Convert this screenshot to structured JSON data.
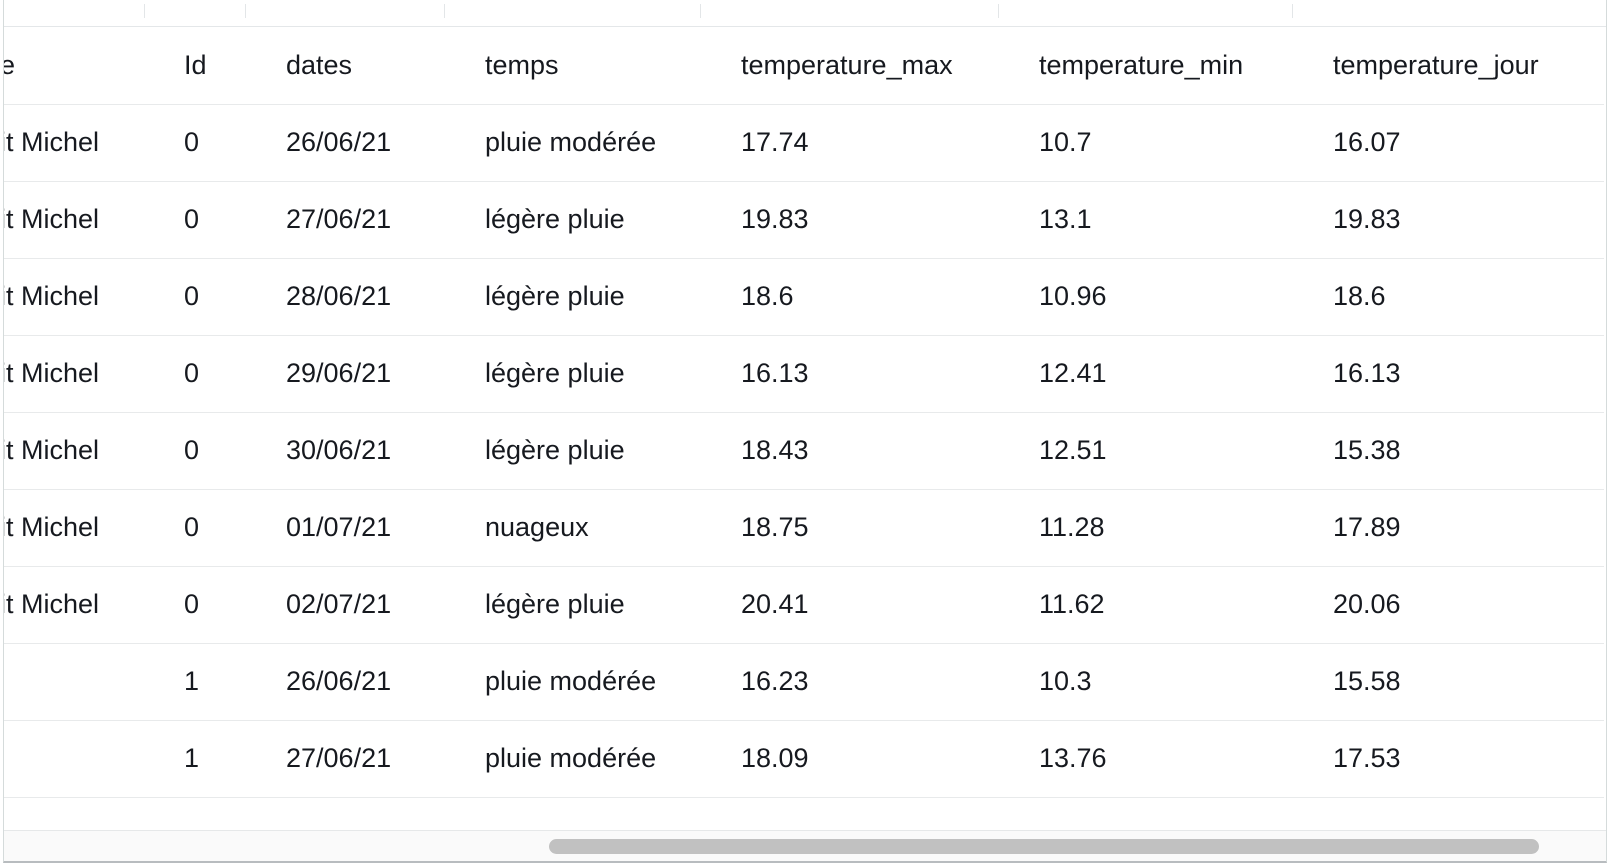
{
  "table": {
    "columns": [
      "e",
      "Id",
      "dates",
      "temps",
      "temperature_max",
      "temperature_min",
      "temperature_jour"
    ],
    "rows": [
      [
        "it Michel",
        "0",
        "26/06/21",
        "pluie modérée",
        "17.74",
        "10.7",
        "16.07"
      ],
      [
        "it Michel",
        "0",
        "27/06/21",
        "légère pluie",
        "19.83",
        "13.1",
        "19.83"
      ],
      [
        "it Michel",
        "0",
        "28/06/21",
        "légère pluie",
        "18.6",
        "10.96",
        "18.6"
      ],
      [
        "it Michel",
        "0",
        "29/06/21",
        "légère pluie",
        "16.13",
        "12.41",
        "16.13"
      ],
      [
        "it Michel",
        "0",
        "30/06/21",
        "légère pluie",
        "18.43",
        "12.51",
        "15.38"
      ],
      [
        "it Michel",
        "0",
        "01/07/21",
        "nuageux",
        "18.75",
        "11.28",
        "17.89"
      ],
      [
        "it Michel",
        "0",
        "02/07/21",
        "légère pluie",
        "20.41",
        "11.62",
        "20.06"
      ],
      [
        "",
        "1",
        "26/06/21",
        "pluie modérée",
        "16.23",
        "10.3",
        "15.58"
      ],
      [
        "",
        "1",
        "27/06/21",
        "pluie modérée",
        "18.09",
        "13.76",
        "17.53"
      ]
    ]
  },
  "scrollbar": {
    "position_fraction": 0.35,
    "visible_fraction": 0.64
  }
}
